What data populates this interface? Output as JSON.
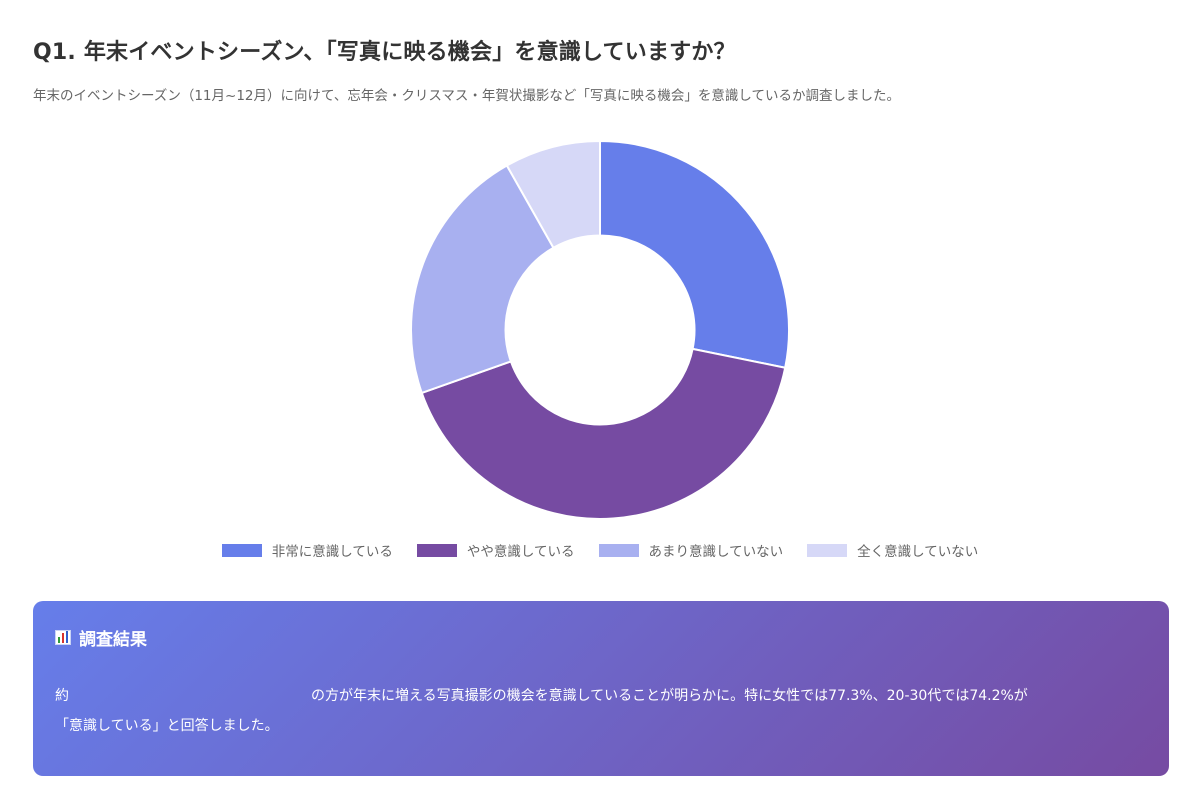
{
  "header": {
    "title": "Q1. 年末イベントシーズン、「写真に映る機会」を意識していますか？",
    "subtitle": "年末のイベントシーズン（11月~12月）に向けて、忘年会・クリスマス・年賀状撮影など「写真に映る機会」を意識しているか調査しました。"
  },
  "chart_data": {
    "type": "pie",
    "variant": "doughnut",
    "title": "Q1. 年末イベントシーズン、「写真に映る機会」を意識していますか？",
    "categories": [
      "非常に意識している",
      "やや意識している",
      "あまり意識していない",
      "全く意識していない"
    ],
    "values": [
      28.2,
      41.4,
      22.2,
      8.2
    ],
    "unit": "%",
    "colors": [
      "#667eea",
      "#764ba2",
      "#a8b0f0",
      "#d6d8f7"
    ],
    "cutout": 0.5,
    "start_angle_deg": 0,
    "direction": "clockwise",
    "legend_position": "bottom",
    "data_labels": false
  },
  "legend": {
    "items": [
      {
        "label": "非常に意識している",
        "color": "#667eea",
        "icon": "legend-swatch"
      },
      {
        "label": "やや意識している",
        "color": "#764ba2",
        "icon": "legend-swatch"
      },
      {
        "label": "あまり意識していない",
        "color": "#a8b0f0",
        "icon": "legend-swatch"
      },
      {
        "label": "全く意識していない",
        "color": "#d6d8f7",
        "icon": "legend-swatch"
      }
    ]
  },
  "result": {
    "icon": "bar-chart-icon",
    "title": "調査結果",
    "prefix": "約",
    "highlight": "",
    "body_line1": "の方が年末に増える写真撮影の機会を意識していることが明らかに。特に女性では77.3%、20-30代では74.2%が",
    "body_line2": "「意識している」と回答しました。",
    "gradient_start": "#667eea",
    "gradient_end": "#764ba2"
  }
}
